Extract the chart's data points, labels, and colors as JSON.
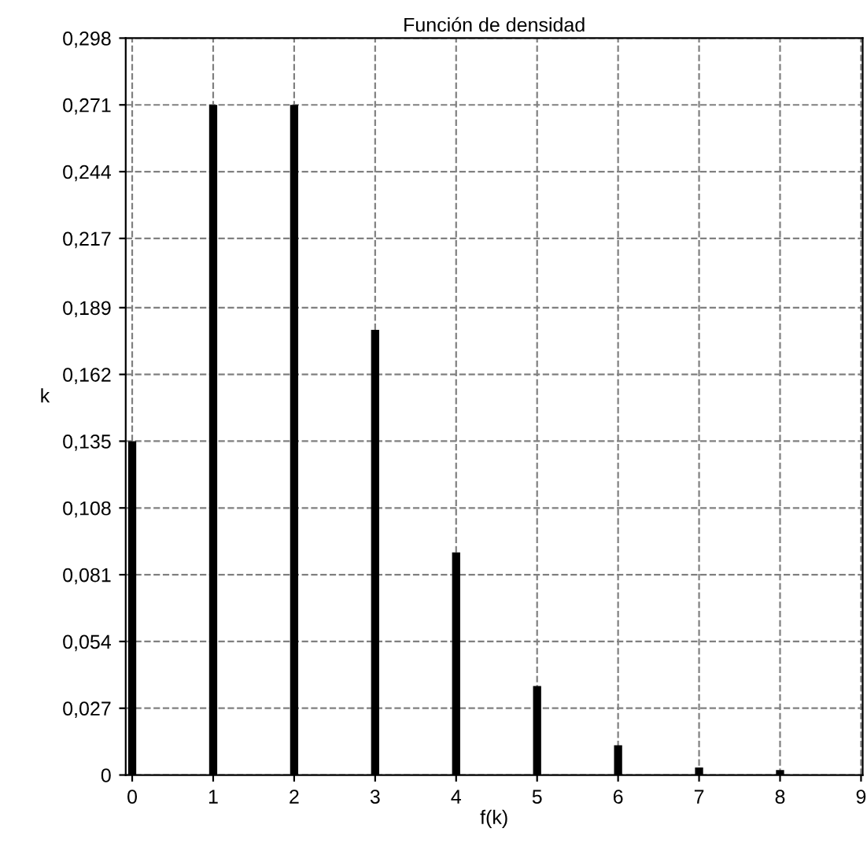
{
  "chart_data": {
    "type": "bar",
    "title": "Función de densidad",
    "xlabel": "f(k)",
    "ylabel": "k",
    "x": [
      0,
      1,
      2,
      3,
      4,
      5,
      6,
      7,
      8
    ],
    "values": [
      0.135,
      0.271,
      0.271,
      0.18,
      0.09,
      0.036,
      0.012,
      0.003,
      0.002
    ],
    "color": "#000000",
    "xlim": [
      -0.08,
      9.02
    ],
    "xticks": [
      0,
      1,
      2,
      3,
      4,
      5,
      6,
      7,
      8,
      9
    ],
    "ylim": [
      0,
      0.298
    ],
    "yticks": [
      0,
      {
        "value": 0.027,
        "label": "0,027"
      },
      {
        "value": 0.054,
        "label": "0,054"
      },
      {
        "value": 0.081,
        "label": "0,081"
      },
      {
        "value": 0.108,
        "label": "0,108"
      },
      {
        "value": 0.135,
        "label": "0,135"
      },
      {
        "value": 0.162,
        "label": "0,162"
      },
      {
        "value": 0.189,
        "label": "0,189"
      },
      {
        "value": 0.217,
        "label": "0,217"
      },
      {
        "value": 0.244,
        "label": "0,244"
      },
      {
        "value": 0.271,
        "label": "0,271"
      },
      {
        "value": 0.298,
        "label": "0,298"
      }
    ],
    "grid": true,
    "line_style": "dashed"
  }
}
